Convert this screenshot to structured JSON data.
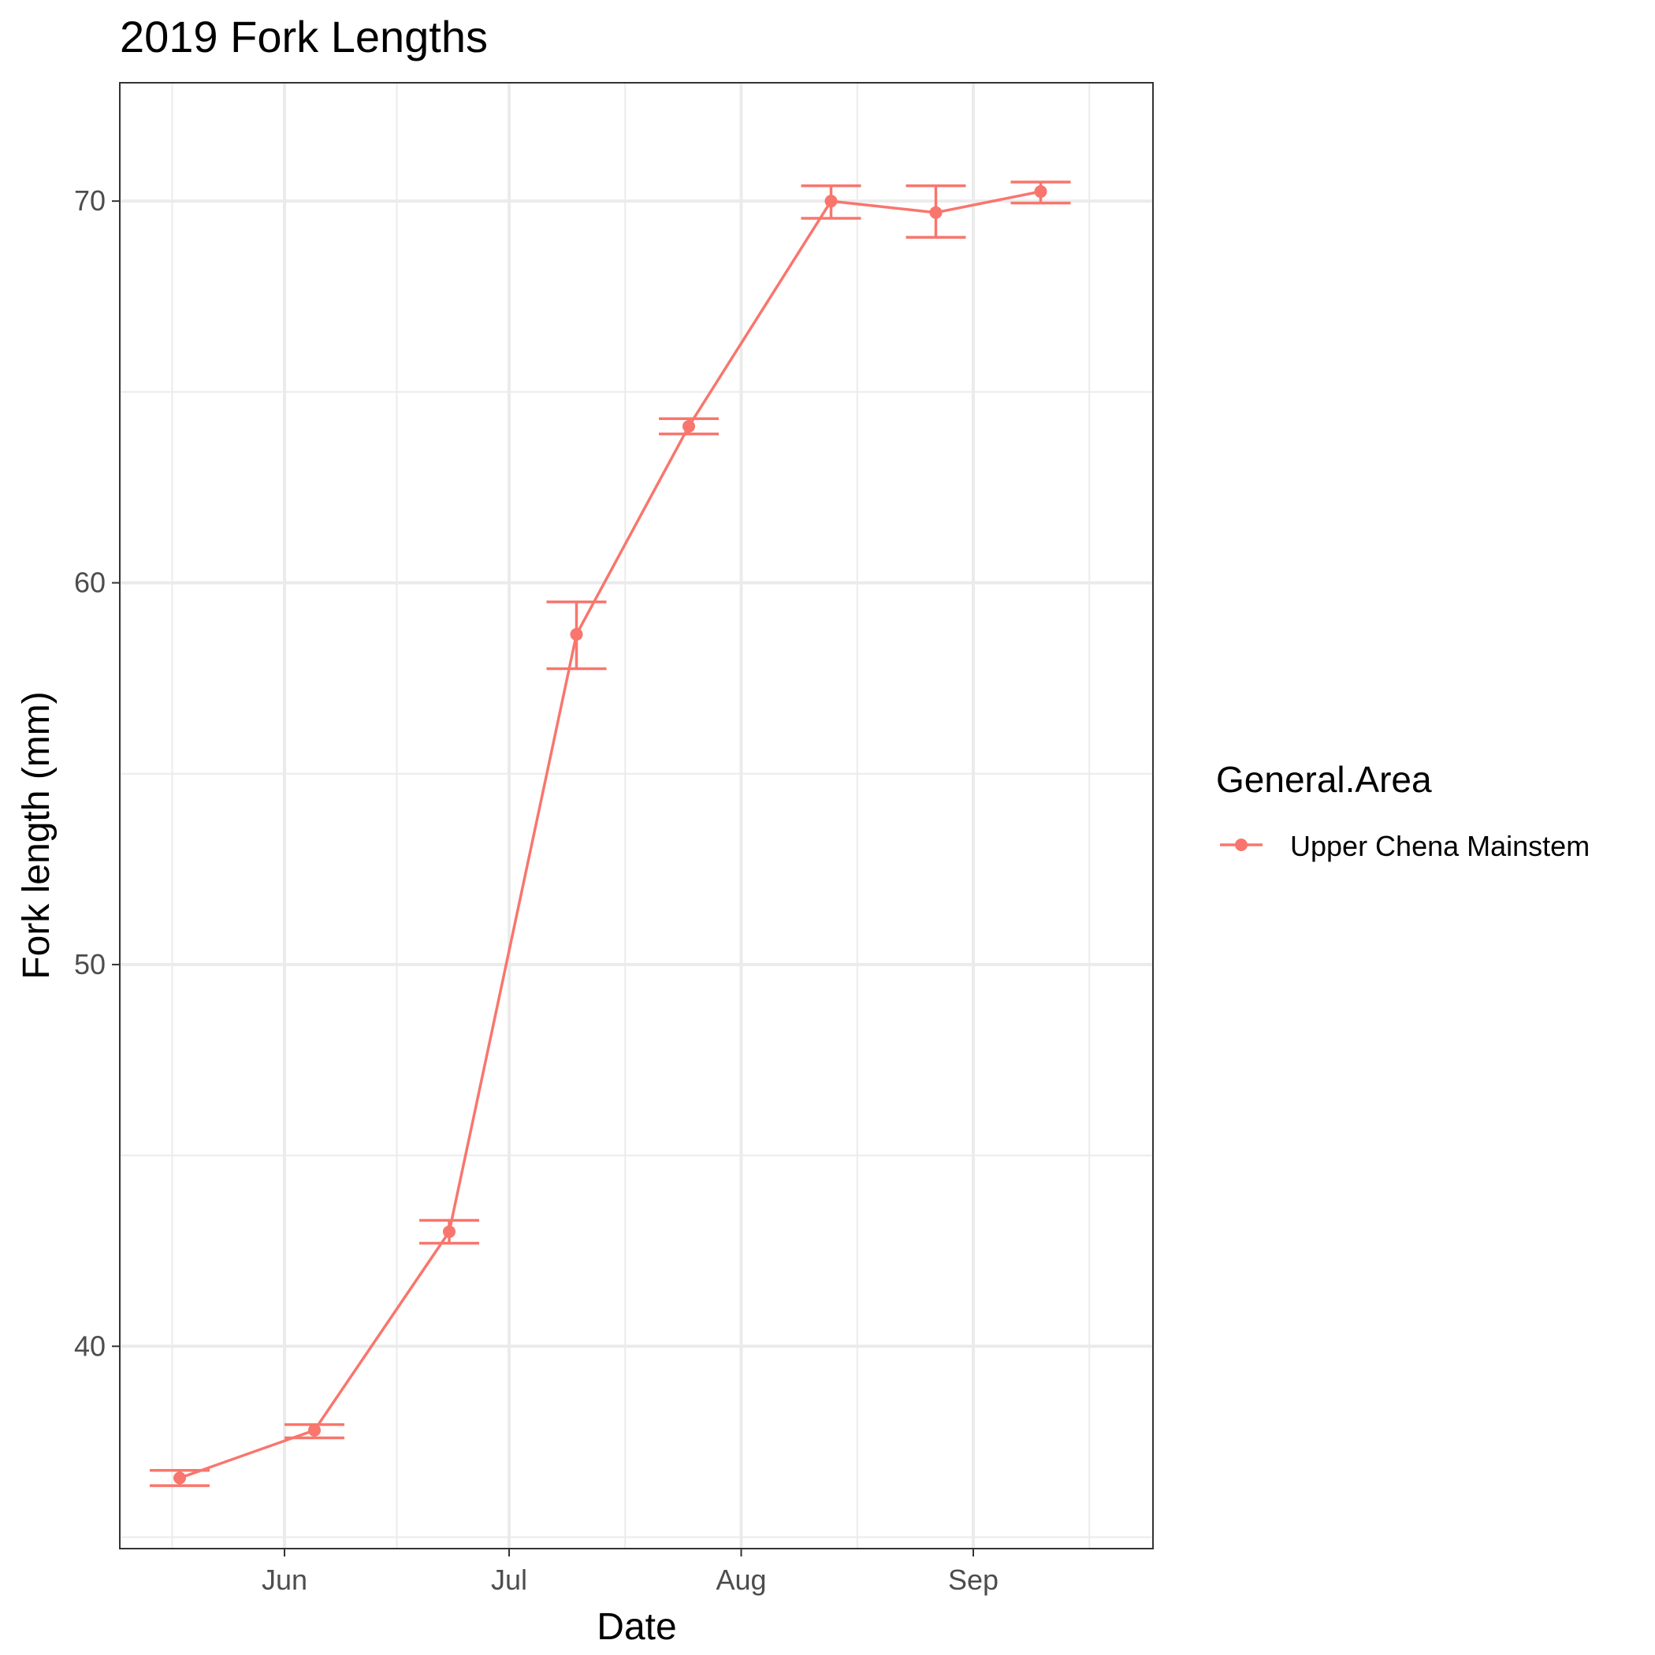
{
  "chart_data": {
    "type": "line",
    "title": "2019 Fork Lengths",
    "xlabel": "Date",
    "ylabel": "Fork length (mm)",
    "x_axis": {
      "scale": "date",
      "range": [
        "2019-05-10",
        "2019-09-25"
      ],
      "ticks": [
        {
          "date": "2019-06-01",
          "label": "Jun"
        },
        {
          "date": "2019-07-01",
          "label": "Jul"
        },
        {
          "date": "2019-08-01",
          "label": "Aug"
        },
        {
          "date": "2019-09-01",
          "label": "Sep"
        }
      ]
    },
    "y_axis": {
      "range": [
        34.7,
        73.1
      ],
      "ticks": [
        40,
        50,
        60,
        70
      ],
      "minor_ticks": [
        35,
        45,
        55,
        65
      ]
    },
    "grid": true,
    "legend": {
      "title": "General.Area",
      "position": "right"
    },
    "series": [
      {
        "name": "Upper Chena Mainstem",
        "color": "#F8766D",
        "points": [
          {
            "date": "2019-05-18",
            "y": 36.55,
            "ymin": 36.35,
            "ymax": 36.75
          },
          {
            "date": "2019-06-05",
            "y": 37.8,
            "ymin": 37.6,
            "ymax": 37.95
          },
          {
            "date": "2019-06-23",
            "y": 43.0,
            "ymin": 42.7,
            "ymax": 43.3
          },
          {
            "date": "2019-07-10",
            "y": 58.65,
            "ymin": 57.75,
            "ymax": 59.5
          },
          {
            "date": "2019-07-25",
            "y": 64.1,
            "ymin": 63.9,
            "ymax": 64.3
          },
          {
            "date": "2019-08-13",
            "y": 70.0,
            "ymin": 69.55,
            "ymax": 70.4
          },
          {
            "date": "2019-08-27",
            "y": 69.7,
            "ymin": 69.05,
            "ymax": 70.4
          },
          {
            "date": "2019-09-10",
            "y": 70.25,
            "ymin": 69.95,
            "ymax": 70.5
          }
        ]
      }
    ]
  }
}
